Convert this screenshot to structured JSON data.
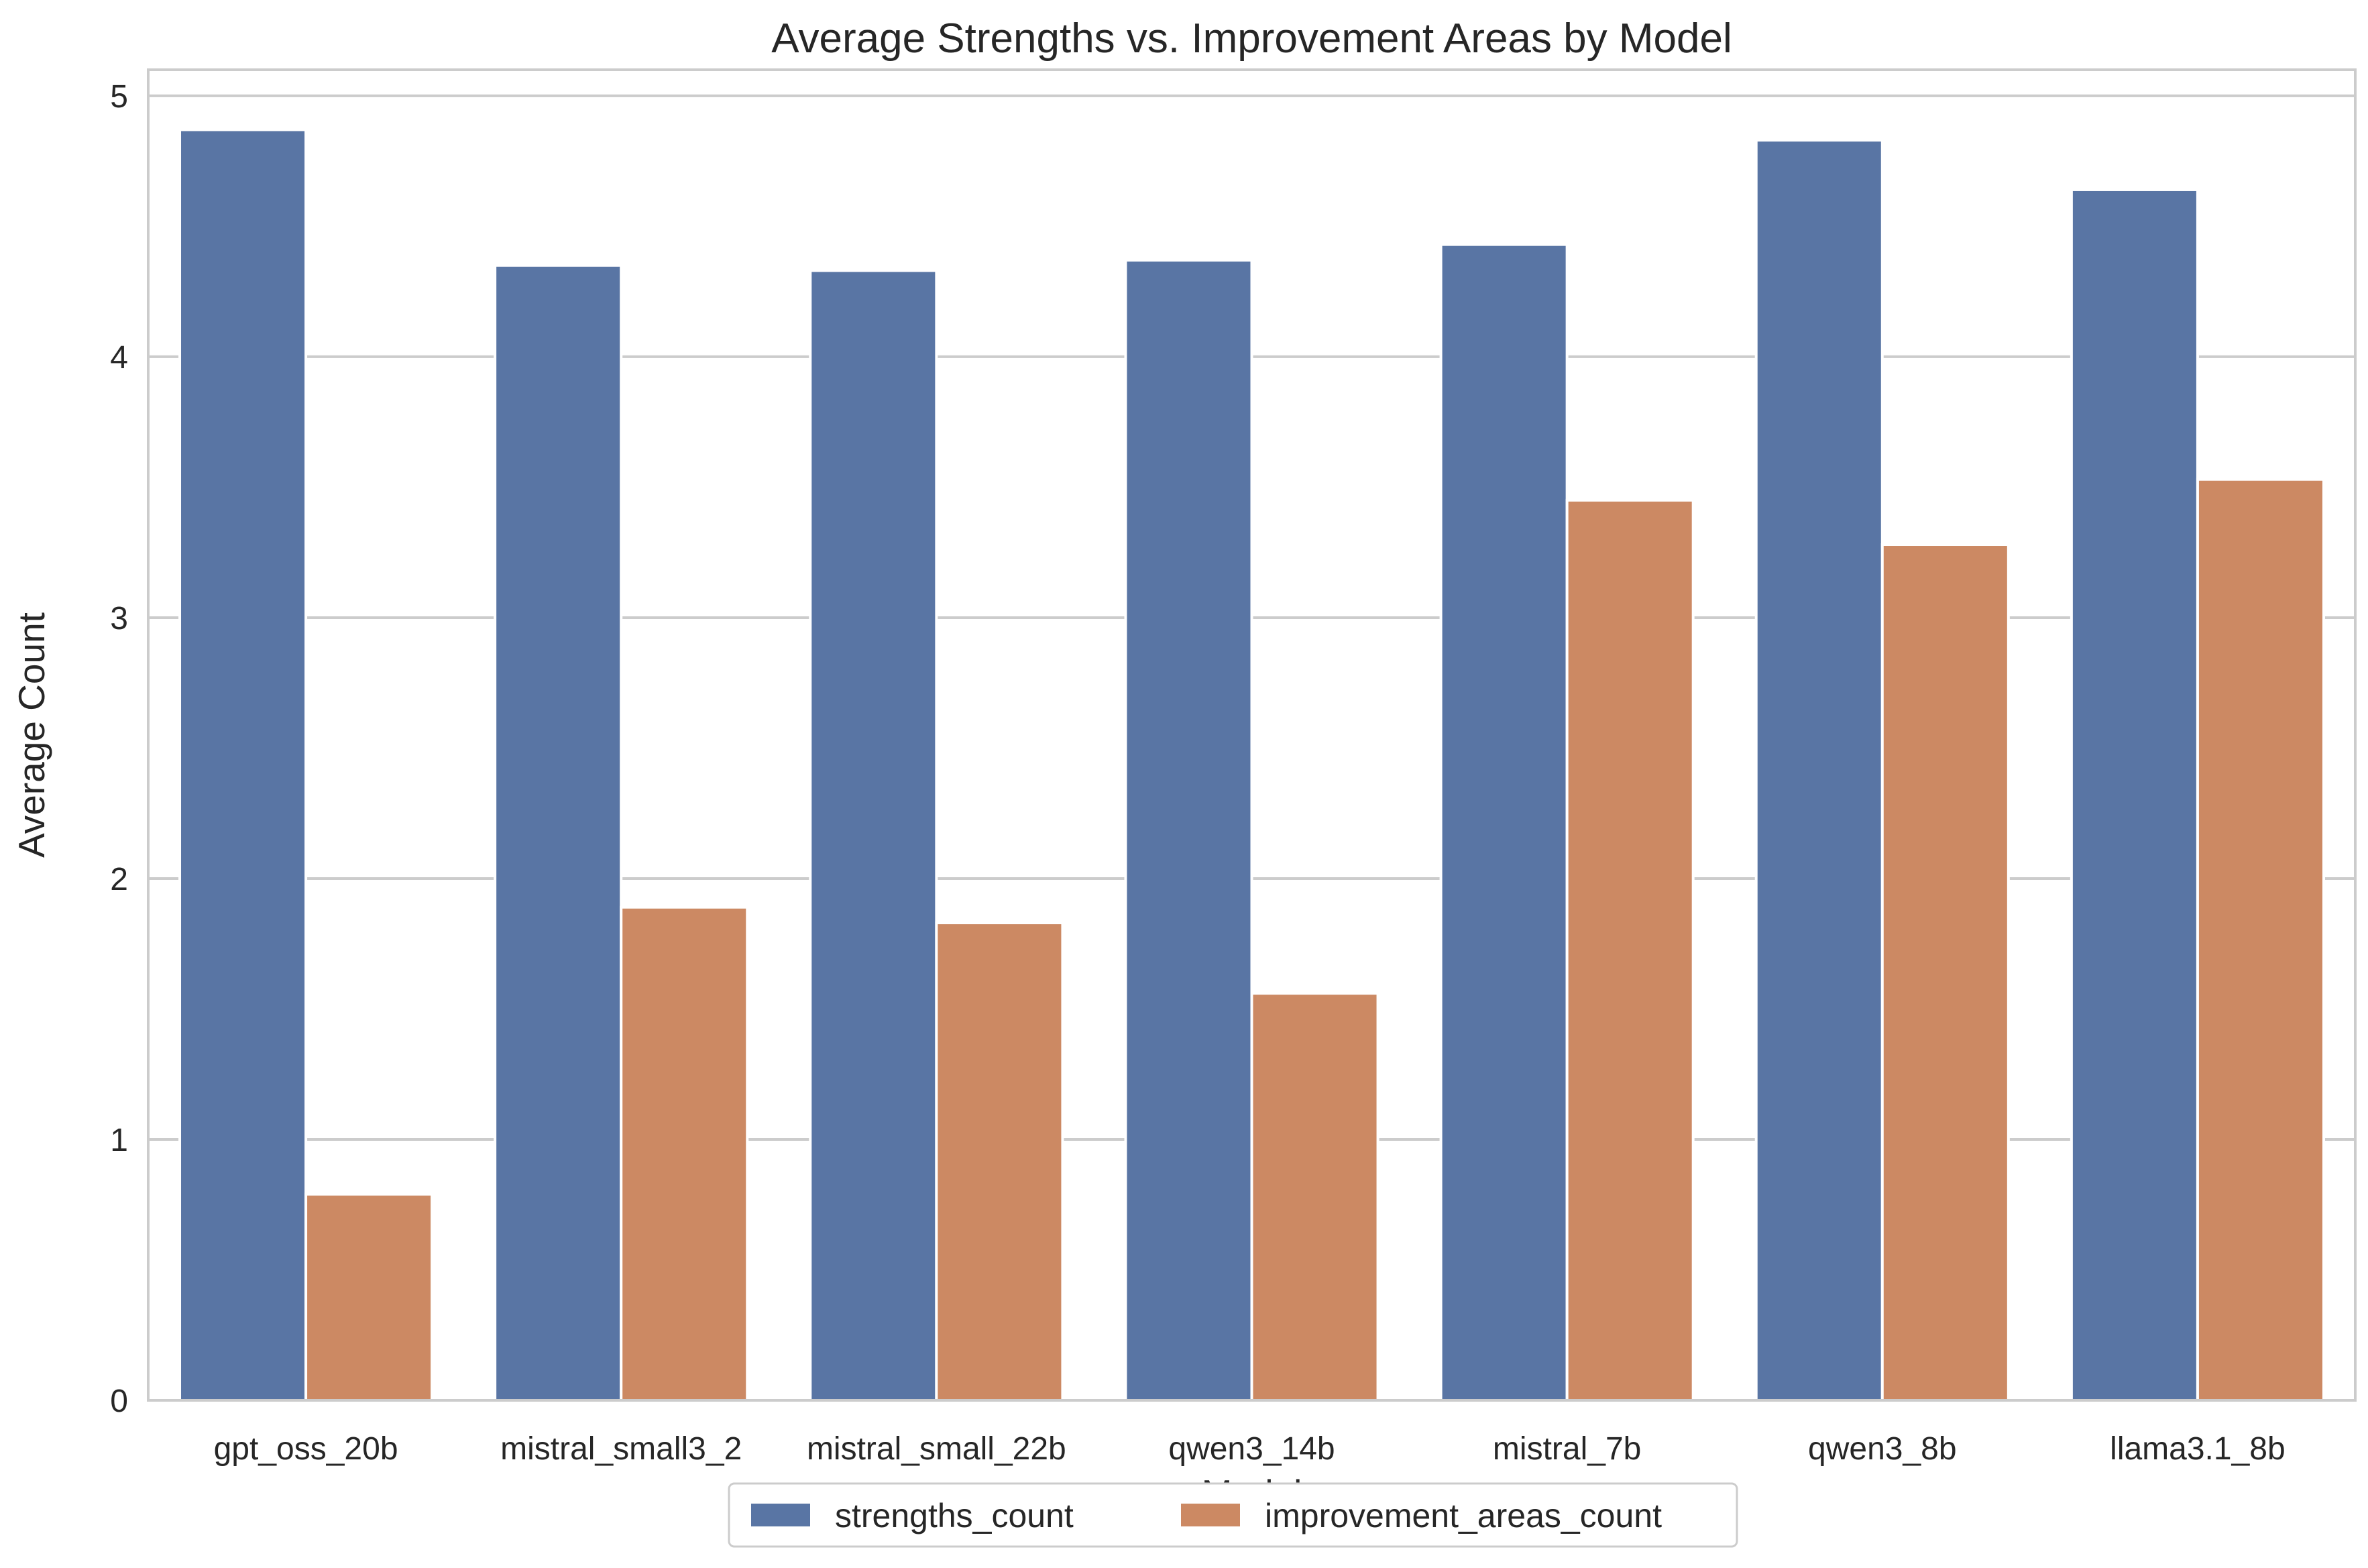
{
  "chart_data": {
    "type": "bar",
    "title": "Average Strengths vs. Improvement Areas by Model",
    "xlabel": "Model",
    "ylabel": "Average Count",
    "categories": [
      "gpt_oss_20b",
      "mistral_small3_2",
      "mistral_small_22b",
      "qwen3_14b",
      "mistral_7b",
      "qwen3_8b",
      "llama3.1_8b"
    ],
    "series": [
      {
        "name": "strengths_count",
        "color": "#5975a4",
        "values": [
          4.87,
          4.35,
          4.33,
          4.37,
          4.43,
          4.83,
          4.64
        ]
      },
      {
        "name": "improvement_areas_count",
        "color": "#cc8963",
        "values": [
          0.79,
          1.89,
          1.83,
          1.56,
          3.45,
          3.28,
          3.53
        ]
      }
    ],
    "ylim": [
      0,
      5.1
    ],
    "yticks": [
      0,
      1,
      2,
      3,
      4,
      5
    ],
    "grid": true,
    "legend_position": "bottom-center"
  }
}
